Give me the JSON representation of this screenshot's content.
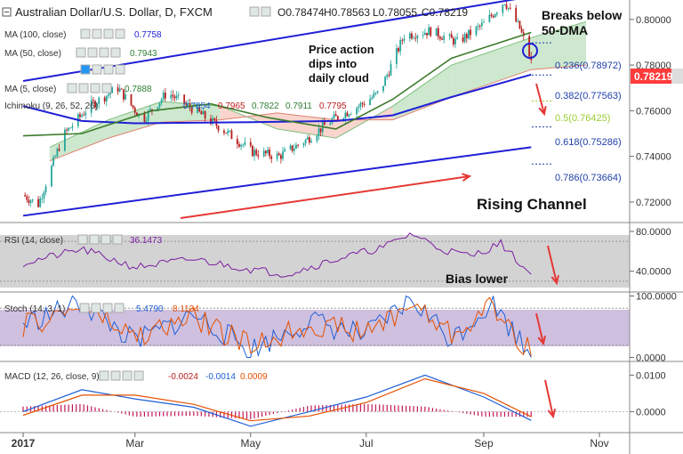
{
  "header": {
    "title": "Australian Dollar/U.S. Dollar, D, FXCM",
    "open": "O0.78474",
    "high": "H0.78563",
    "low": "L0.78055",
    "close": "C0.78219"
  },
  "legends": {
    "ma100": "MA (100, close)",
    "ma100_value": "0.7758",
    "ma50": "MA (50, close)",
    "ma50_value": "0.7943",
    "ma5": "MA (5, close)",
    "ma5_value": "0.7888",
    "ichimoku": "Ichimoku (9, 26, 52, 26)",
    "ichi_v1": "0.7854",
    "ichi_v2": "0.7965",
    "ichi_v3": "0.7822",
    "ichi_v4": "0.7911",
    "ichi_v5": "0.7795",
    "rsi": "RSI (14, close)",
    "rsi_value": "36.1473",
    "stoch": "Stoch (14, 3, 1)",
    "stoch_k": "5.4790",
    "stoch_d": "8.1134",
    "macd": "MACD (12, 26, close, 9)",
    "macd_v1": "-0.0024",
    "macd_v2": "-0.0014",
    "macd_v3": "0.0009"
  },
  "annotations": {
    "breaks_line1": "Breaks below",
    "breaks_line2": "50-DMA",
    "price_line1": "Price action",
    "price_line2": "dips into",
    "price_line3": "daily cloud",
    "rising_channel": "Rising Channel",
    "bias_lower": "Bias lower"
  },
  "fib": {
    "l236": "0.236(0.78972)",
    "l382": "0.382(0.77563)",
    "l500": "0.5(0.76425)",
    "l618": "0.618(0.75286)",
    "l786": "0.786(0.73664)"
  },
  "price_tag": "0.78219",
  "colors": {
    "bull": "#26a69a",
    "bear": "#b71c1c",
    "ma100": "#1f1fd6",
    "ma50": "#3c7a2a",
    "channel": "#1f1fd6",
    "arrow": "#e53935",
    "cloud_bull": "#c8e6c9",
    "cloud_bear": "#f8d0c8",
    "rsi": "#7b1fa2",
    "stoch_k": "#1f5fd6",
    "stoch_d": "#e65100",
    "macd": "#1f5fd6",
    "signal": "#e65100",
    "hist": "#c2185b"
  },
  "chart_data": [
    {
      "type": "candlestick",
      "title": "Australian Dollar/U.S. Dollar, D, FXCM",
      "x_ticks": [
        "2017",
        "Mar",
        "May",
        "Jul",
        "Sep",
        "Nov"
      ],
      "y_ticks": [
        "0.80000",
        "0.78000",
        "0.76000",
        "0.74000",
        "0.72000"
      ],
      "ylim": [
        0.711,
        0.8085
      ],
      "price_path": [
        {
          "date": "2017-01-01",
          "price": 0.723
        },
        {
          "date": "2017-01-09",
          "price": 0.719
        },
        {
          "date": "2017-01-22",
          "price": 0.749
        },
        {
          "date": "2017-02-05",
          "price": 0.762
        },
        {
          "date": "2017-02-20",
          "price": 0.77
        },
        {
          "date": "2017-03-05",
          "price": 0.756
        },
        {
          "date": "2017-03-18",
          "price": 0.768
        },
        {
          "date": "2017-04-02",
          "price": 0.76
        },
        {
          "date": "2017-04-16",
          "price": 0.752
        },
        {
          "date": "2017-05-02",
          "price": 0.742
        },
        {
          "date": "2017-05-16",
          "price": 0.74
        },
        {
          "date": "2017-05-30",
          "price": 0.747
        },
        {
          "date": "2017-06-13",
          "price": 0.756
        },
        {
          "date": "2017-06-27",
          "price": 0.762
        },
        {
          "date": "2017-07-08",
          "price": 0.768
        },
        {
          "date": "2017-07-21",
          "price": 0.793
        },
        {
          "date": "2017-08-04",
          "price": 0.795
        },
        {
          "date": "2017-08-18",
          "price": 0.79
        },
        {
          "date": "2017-09-01",
          "price": 0.798
        },
        {
          "date": "2017-09-12",
          "price": 0.808
        },
        {
          "date": "2017-09-20",
          "price": 0.796
        },
        {
          "date": "2017-09-26",
          "price": 0.7822
        }
      ],
      "ma100": [
        {
          "date": "2017-01-01",
          "value": 0.762
        },
        {
          "date": "2017-02-01",
          "value": 0.7555
        },
        {
          "date": "2017-03-01",
          "value": 0.7545
        },
        {
          "date": "2017-05-01",
          "value": 0.755
        },
        {
          "date": "2017-06-15",
          "value": 0.7555
        },
        {
          "date": "2017-07-15",
          "value": 0.758
        },
        {
          "date": "2017-08-15",
          "value": 0.766
        },
        {
          "date": "2017-09-26",
          "value": 0.7758
        }
      ],
      "ma50": [
        {
          "date": "2017-01-01",
          "value": 0.749
        },
        {
          "date": "2017-02-01",
          "value": 0.75
        },
        {
          "date": "2017-03-10",
          "value": 0.76
        },
        {
          "date": "2017-04-10",
          "value": 0.763
        },
        {
          "date": "2017-05-10",
          "value": 0.757
        },
        {
          "date": "2017-06-15",
          "value": 0.752
        },
        {
          "date": "2017-07-15",
          "value": 0.765
        },
        {
          "date": "2017-08-15",
          "value": 0.783
        },
        {
          "date": "2017-09-26",
          "value": 0.7943
        }
      ],
      "ichimoku_cloud": [
        {
          "date": "2017-01-15",
          "a": 0.744,
          "b": 0.738
        },
        {
          "date": "2017-02-15",
          "a": 0.756,
          "b": 0.748
        },
        {
          "date": "2017-03-15",
          "a": 0.764,
          "b": 0.755
        },
        {
          "date": "2017-04-15",
          "a": 0.762,
          "b": 0.756
        },
        {
          "date": "2017-05-15",
          "a": 0.752,
          "b": 0.759
        },
        {
          "date": "2017-06-15",
          "a": 0.748,
          "b": 0.756
        },
        {
          "date": "2017-07-15",
          "a": 0.762,
          "b": 0.756
        },
        {
          "date": "2017-08-15",
          "a": 0.78,
          "b": 0.766
        },
        {
          "date": "2017-09-26",
          "a": 0.792,
          "b": 0.778
        },
        {
          "date": "2017-10-25",
          "a": 0.799,
          "b": 0.78
        }
      ],
      "channel": {
        "upper": [
          {
            "date": "2017-01-01",
            "value": 0.773
          },
          {
            "date": "2017-09-26",
            "value": 0.81
          }
        ],
        "lower": [
          {
            "date": "2017-01-01",
            "value": 0.714
          },
          {
            "date": "2017-09-26",
            "value": 0.744
          }
        ]
      },
      "fibonacci": [
        {
          "level": "0.236",
          "value": 0.78972
        },
        {
          "level": "0.382",
          "value": 0.77563
        },
        {
          "level": "0.5",
          "value": 0.76425
        },
        {
          "level": "0.618",
          "value": 0.75286
        },
        {
          "level": "0.786",
          "value": 0.73664
        }
      ],
      "last_price": 0.78219
    },
    {
      "type": "line",
      "title": "RSI (14, close)",
      "y_ticks": [
        "80.0000",
        "40.0000"
      ],
      "ylim": [
        20,
        88
      ],
      "bands": [
        30,
        70
      ],
      "values": [
        {
          "date": "2017-01-01",
          "value": 48
        },
        {
          "date": "2017-02-01",
          "value": 62
        },
        {
          "date": "2017-03-01",
          "value": 44
        },
        {
          "date": "2017-04-01",
          "value": 52
        },
        {
          "date": "2017-05-01",
          "value": 42
        },
        {
          "date": "2017-05-20",
          "value": 37
        },
        {
          "date": "2017-06-15",
          "value": 52
        },
        {
          "date": "2017-07-10",
          "value": 64
        },
        {
          "date": "2017-07-25",
          "value": 78
        },
        {
          "date": "2017-08-10",
          "value": 62
        },
        {
          "date": "2017-08-25",
          "value": 55
        },
        {
          "date": "2017-09-10",
          "value": 68
        },
        {
          "date": "2017-09-26",
          "value": 36.1473
        }
      ]
    },
    {
      "type": "line",
      "title": "Stoch (14, 3, 1)",
      "y_ticks": [
        "100.0000",
        "0.0000"
      ],
      "ylim": [
        -5,
        105
      ],
      "bands": [
        20,
        80
      ],
      "k": [
        {
          "date": "2017-01-01",
          "value": 55
        },
        {
          "date": "2017-02-01",
          "value": 88
        },
        {
          "date": "2017-03-01",
          "value": 25
        },
        {
          "date": "2017-04-01",
          "value": 70
        },
        {
          "date": "2017-05-01",
          "value": 12
        },
        {
          "date": "2017-06-01",
          "value": 60
        },
        {
          "date": "2017-07-01",
          "value": 35
        },
        {
          "date": "2017-07-25",
          "value": 95
        },
        {
          "date": "2017-08-15",
          "value": 30
        },
        {
          "date": "2017-09-05",
          "value": 90
        },
        {
          "date": "2017-09-26",
          "value": 5.479
        }
      ],
      "d": [
        {
          "date": "2017-01-01",
          "value": 50
        },
        {
          "date": "2017-02-01",
          "value": 82
        },
        {
          "date": "2017-03-01",
          "value": 32
        },
        {
          "date": "2017-04-01",
          "value": 65
        },
        {
          "date": "2017-05-01",
          "value": 18
        },
        {
          "date": "2017-06-01",
          "value": 55
        },
        {
          "date": "2017-07-01",
          "value": 40
        },
        {
          "date": "2017-07-25",
          "value": 88
        },
        {
          "date": "2017-08-15",
          "value": 38
        },
        {
          "date": "2017-09-05",
          "value": 84
        },
        {
          "date": "2017-09-26",
          "value": 8.1134
        }
      ]
    },
    {
      "type": "bar",
      "title": "MACD (12, 26, close, 9)",
      "y_ticks": [
        "0.0100",
        "0.0000"
      ],
      "ylim": [
        -0.0055,
        0.0135
      ],
      "macd": [
        {
          "date": "2017-01-01",
          "value": 0.0
        },
        {
          "date": "2017-02-01",
          "value": 0.006
        },
        {
          "date": "2017-03-01",
          "value": 0.0035
        },
        {
          "date": "2017-04-01",
          "value": 0.0012
        },
        {
          "date": "2017-05-01",
          "value": -0.004
        },
        {
          "date": "2017-06-01",
          "value": 0.0
        },
        {
          "date": "2017-07-01",
          "value": 0.004
        },
        {
          "date": "2017-08-01",
          "value": 0.01
        },
        {
          "date": "2017-09-01",
          "value": 0.004
        },
        {
          "date": "2017-09-26",
          "value": -0.0024
        }
      ],
      "signal": [
        {
          "date": "2017-01-01",
          "value": -0.001
        },
        {
          "date": "2017-02-01",
          "value": 0.0045
        },
        {
          "date": "2017-03-01",
          "value": 0.0045
        },
        {
          "date": "2017-04-01",
          "value": 0.002
        },
        {
          "date": "2017-05-01",
          "value": -0.0025
        },
        {
          "date": "2017-06-01",
          "value": -0.0012
        },
        {
          "date": "2017-07-01",
          "value": 0.0025
        },
        {
          "date": "2017-08-01",
          "value": 0.009
        },
        {
          "date": "2017-09-01",
          "value": 0.005
        },
        {
          "date": "2017-09-26",
          "value": -0.0014
        }
      ],
      "histogram_last": 0.0009
    }
  ]
}
